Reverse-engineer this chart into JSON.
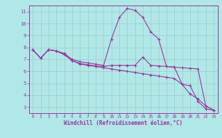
{
  "background_color": "#b0e8e8",
  "grid_color": "#a0c8c8",
  "line_color": "#993399",
  "marker_style": "+",
  "marker_size": 3,
  "linewidth": 0.8,
  "xlabel": "Windchill (Refroidissement éolien,°C)",
  "xlabel_fontsize": 5.5,
  "xtick_fontsize": 4.5,
  "ytick_fontsize": 5.0,
  "xlim": [
    -0.5,
    23.5
  ],
  "ylim": [
    2.5,
    11.5
  ],
  "xticks": [
    0,
    1,
    2,
    3,
    4,
    5,
    6,
    7,
    8,
    9,
    10,
    11,
    12,
    13,
    14,
    15,
    16,
    17,
    18,
    19,
    20,
    21,
    22,
    23
  ],
  "yticks": [
    3,
    4,
    5,
    6,
    7,
    8,
    9,
    10,
    11
  ],
  "line1_x": [
    0,
    1,
    2,
    3,
    4,
    5,
    6,
    7,
    8,
    9,
    10,
    11,
    12,
    13,
    14,
    15,
    16,
    17,
    18,
    19,
    20,
    21,
    22,
    23
  ],
  "line1_y": [
    7.8,
    7.1,
    7.8,
    7.7,
    7.5,
    7.0,
    6.8,
    6.7,
    6.6,
    6.5,
    8.7,
    10.5,
    11.25,
    11.1,
    10.5,
    9.3,
    8.7,
    6.4,
    6.35,
    4.9,
    4.8,
    3.5,
    2.85,
    2.75
  ],
  "line2_x": [
    0,
    1,
    2,
    3,
    4,
    5,
    6,
    7,
    8,
    9,
    10,
    11,
    12,
    13,
    14,
    15,
    16,
    17,
    18,
    19,
    20,
    21,
    22,
    23
  ],
  "line2_y": [
    7.8,
    7.1,
    7.8,
    7.7,
    7.4,
    6.9,
    6.65,
    6.55,
    6.45,
    6.4,
    6.5,
    6.5,
    6.5,
    6.5,
    7.2,
    6.5,
    6.45,
    6.4,
    6.35,
    6.3,
    6.25,
    6.2,
    3.1,
    2.75
  ],
  "line3_x": [
    0,
    1,
    2,
    3,
    4,
    5,
    6,
    7,
    8,
    9,
    10,
    11,
    12,
    13,
    14,
    15,
    16,
    17,
    18,
    19,
    20,
    21,
    22,
    23
  ],
  "line3_y": [
    7.8,
    7.1,
    7.8,
    7.7,
    7.4,
    6.9,
    6.6,
    6.5,
    6.4,
    6.3,
    6.2,
    6.1,
    6.0,
    5.9,
    5.8,
    5.7,
    5.6,
    5.5,
    5.4,
    4.9,
    4.1,
    3.7,
    3.1,
    2.75
  ]
}
